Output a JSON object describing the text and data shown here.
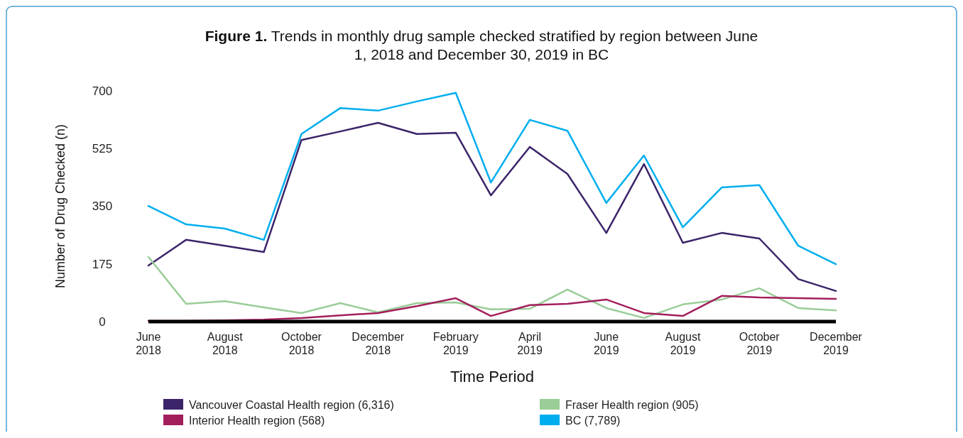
{
  "chart_data": {
    "type": "line",
    "title": "Figure 1. Trends in monthly drug sample checked stratified by region between June 1, 2018 and December 30, 2019 in BC",
    "xlabel": "Time Period",
    "ylabel": "Number of Drug Checked (n)",
    "x": [
      "2018-06",
      "2018-07",
      "2018-08",
      "2018-09",
      "2018-10",
      "2018-11",
      "2018-12",
      "2019-01",
      "2019-02",
      "2019-03",
      "2019-04",
      "2019-05",
      "2019-06",
      "2019-07",
      "2019-08",
      "2019-09",
      "2019-10",
      "2019-11",
      "2019-12"
    ],
    "xlim": [
      "2018-06",
      "2019-12"
    ],
    "xticks": [
      {
        "value": "2018-06",
        "label": "June 2018"
      },
      {
        "value": "2018-08",
        "label": "August 2018"
      },
      {
        "value": "2018-10",
        "label": "October 2018"
      },
      {
        "value": "2018-12",
        "label": "December 2018"
      },
      {
        "value": "2019-02",
        "label": "February 2019"
      },
      {
        "value": "2019-04",
        "label": "April 2019"
      },
      {
        "value": "2019-06",
        "label": "June 2019"
      },
      {
        "value": "2019-08",
        "label": "August 2019"
      },
      {
        "value": "2019-10",
        "label": "October 2019"
      },
      {
        "value": "2019-12",
        "label": "December 2019"
      }
    ],
    "ylim": [
      0,
      700
    ],
    "yticks": [
      0,
      175,
      350,
      525,
      700
    ],
    "grid": false,
    "legend": "bottom",
    "marker": "none",
    "line_style": "solid",
    "series": [
      {
        "name": "Vancouver Coastal Health region (6,316)",
        "color": "#3b2469",
        "values": [
          170,
          248,
          230,
          211,
          551,
          577,
          603,
          569,
          573,
          383,
          530,
          448,
          269,
          478,
          239,
          269,
          252,
          129,
          93
        ]
      },
      {
        "name": "Fraser Health region (905)",
        "color": "#9acd98",
        "values": [
          196,
          54,
          62,
          43,
          26,
          56,
          28,
          56,
          58,
          37,
          39,
          97,
          41,
          11,
          52,
          67,
          101,
          41,
          34
        ]
      },
      {
        "name": "Interior Health region (568)",
        "color": "#a31f5c",
        "values": [
          2,
          2,
          4,
          6,
          11,
          19,
          26,
          47,
          71,
          17,
          50,
          54,
          67,
          26,
          17,
          78,
          73,
          71,
          69
        ]
      },
      {
        "name": "BC (7,789)",
        "color": "#00aeef",
        "values": [
          351,
          295,
          282,
          248,
          569,
          648,
          640,
          668,
          694,
          422,
          612,
          579,
          360,
          504,
          286,
          407,
          414,
          230,
          174
        ]
      }
    ]
  }
}
